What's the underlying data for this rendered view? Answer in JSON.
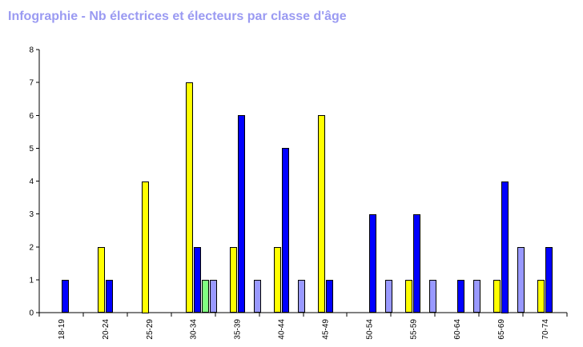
{
  "page": {
    "title": "Infographie - Nb électrices et électeurs par classe d'âge"
  },
  "chart_data": {
    "type": "bar",
    "title": "Infographie - Nb électrices et électeurs par classe d'âge",
    "xlabel": "",
    "ylabel": "",
    "ylim": [
      0,
      8
    ],
    "yticks": [
      "0",
      "1",
      "2",
      "3",
      "4",
      "5",
      "6",
      "7",
      "8"
    ],
    "grid": false,
    "legend": "none",
    "categories": [
      "18-19",
      "20-24",
      "25-29",
      "30-34",
      "35-39",
      "40-44",
      "45-49",
      "50-54",
      "55-59",
      "60-64",
      "65-69",
      "70-74"
    ],
    "series": [
      {
        "color": "#ffff00",
        "values": [
          0,
          2,
          4,
          7,
          2,
          2,
          6,
          0,
          1,
          0,
          1,
          1
        ]
      },
      {
        "color": "#0000ff",
        "values": [
          1,
          1,
          0,
          2,
          6,
          5,
          1,
          3,
          3,
          1,
          4,
          2
        ]
      },
      {
        "color": "#80ff80",
        "values": [
          0,
          0,
          0,
          1,
          0,
          0,
          0,
          0,
          0,
          0,
          0,
          0
        ]
      },
      {
        "color": "#9999ff",
        "values": [
          0,
          0,
          0,
          1,
          1,
          1,
          0,
          1,
          1,
          1,
          2,
          0
        ]
      }
    ]
  }
}
